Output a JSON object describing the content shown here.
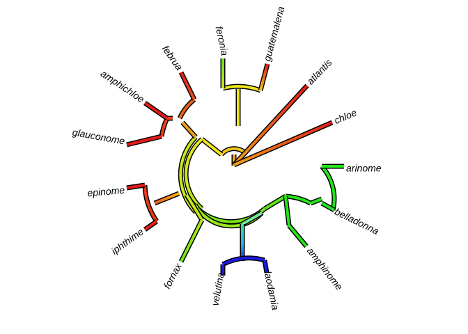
{
  "tree": {
    "tips": [
      {
        "id": "feronia",
        "label": "feronia",
        "color": "#66e61a"
      },
      {
        "id": "guatemalena",
        "label": "guatemalena",
        "color": "#e61a1a"
      },
      {
        "id": "atlantis",
        "label": "atlantis",
        "color": "#e61a1a"
      },
      {
        "id": "chloe",
        "label": "chloe",
        "color": "#e61a1a"
      },
      {
        "id": "arinome",
        "label": "arinome",
        "color": "#22e61a"
      },
      {
        "id": "belladonna",
        "label": "belladonna",
        "color": "#22e61a"
      },
      {
        "id": "amphinome",
        "label": "amphinome",
        "color": "#22e61a"
      },
      {
        "id": "laodamia",
        "label": "laodamia",
        "color": "#1a1ae6"
      },
      {
        "id": "velutina",
        "label": "velutina",
        "color": "#1a1ae6"
      },
      {
        "id": "fornax",
        "label": "fornax",
        "color": "#66e61a"
      },
      {
        "id": "iphthime",
        "label": "iphthime",
        "color": "#e61a1a"
      },
      {
        "id": "epinome",
        "label": "epinome",
        "color": "#e61a1a"
      },
      {
        "id": "glauconome",
        "label": "glauconome",
        "color": "#e61a1a"
      },
      {
        "id": "amphichloe",
        "label": "amphichloe",
        "color": "#e61a1a"
      },
      {
        "id": "februa",
        "label": "februa",
        "color": "#e61a1a"
      }
    ]
  }
}
